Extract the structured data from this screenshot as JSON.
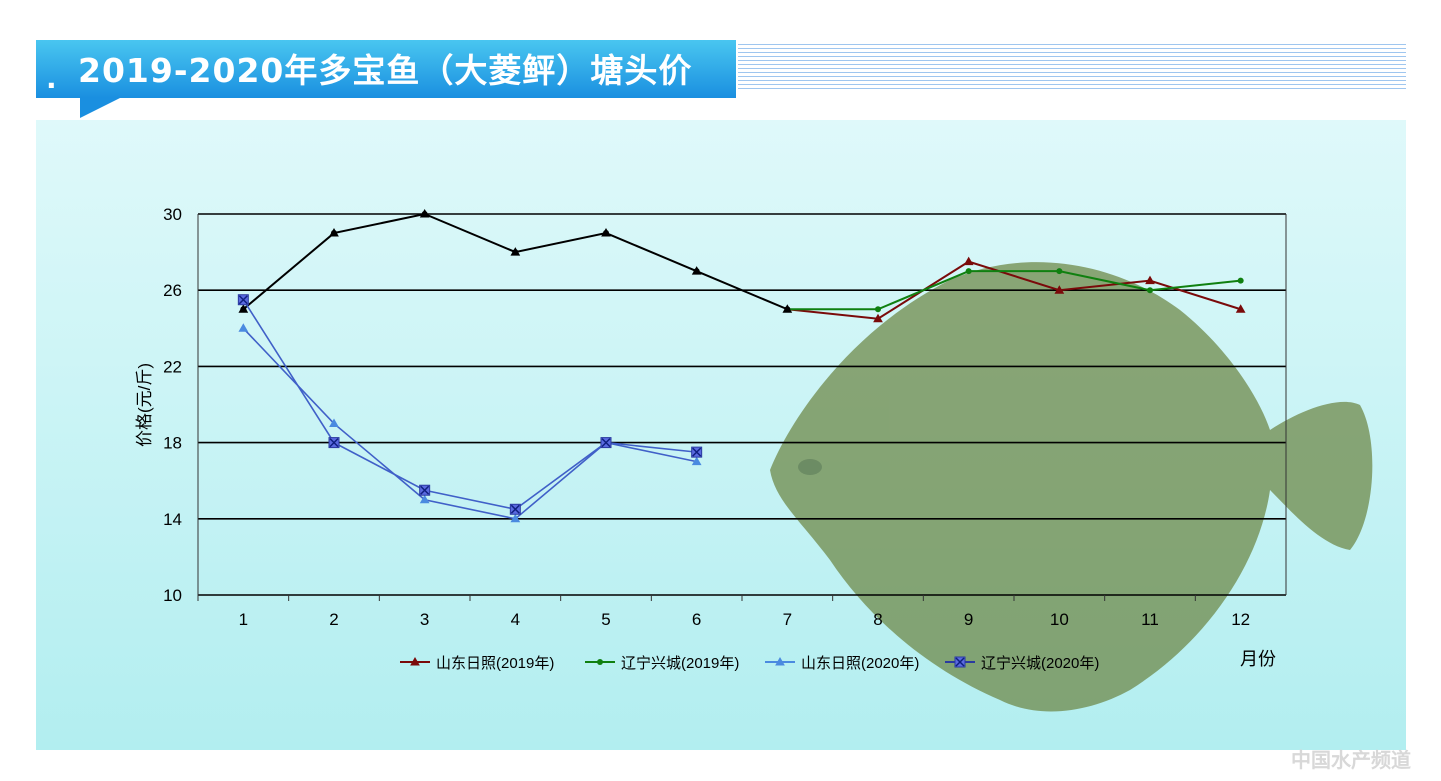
{
  "header": {
    "title": "2019-2020年多宝鱼（大菱鲆）塘头价",
    "bullet": "."
  },
  "watermark": "中国水产频道",
  "colors": {
    "banner": "#1a8fe0",
    "background": "#c8f4f5",
    "shandong2019": "#7a0a0a",
    "liaoning2019": "#108010",
    "shandong2020": "#4a8ae0",
    "liaoning2020": "#2a3aa0",
    "overlap2019": "#000000"
  },
  "chart_data": {
    "type": "line",
    "title": "2019-2020年多宝鱼（大菱鲆）塘头价",
    "xlabel": "月份",
    "ylabel": "价格(元/斤)",
    "categories": [
      "1",
      "2",
      "3",
      "4",
      "5",
      "6",
      "7",
      "8",
      "9",
      "10",
      "11",
      "12"
    ],
    "ylim": [
      10,
      30
    ],
    "yticks": [
      "10",
      "14",
      "18",
      "22",
      "26",
      "30"
    ],
    "grid": true,
    "legend_position": "bottom",
    "series": [
      {
        "name": "山东日照(2019年)",
        "marker": "triangle",
        "values": [
          25,
          29,
          30,
          28,
          29,
          27,
          25,
          24.5,
          27.5,
          26,
          26.5,
          25
        ]
      },
      {
        "name": "辽宁兴城(2019年)",
        "marker": "circle",
        "values": [
          25,
          29,
          30,
          28,
          29,
          27,
          25,
          25,
          27,
          27,
          26,
          26.5
        ]
      },
      {
        "name": "山东日照(2020年)",
        "marker": "triangle",
        "values": [
          24,
          19,
          15,
          14,
          18,
          17,
          null,
          null,
          null,
          null,
          null,
          null
        ]
      },
      {
        "name": "辽宁兴城(2020年)",
        "marker": "x-square",
        "values": [
          25.5,
          18,
          15.5,
          14.5,
          18,
          17.5,
          null,
          null,
          null,
          null,
          null,
          null
        ]
      }
    ]
  }
}
